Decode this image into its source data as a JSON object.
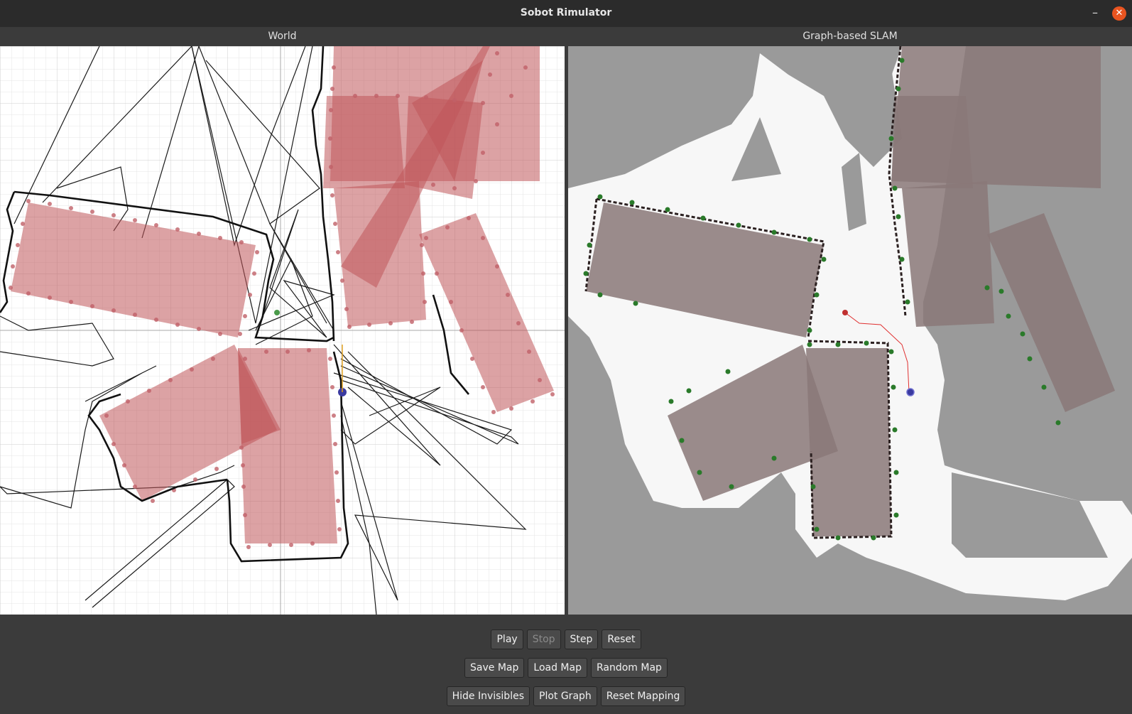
{
  "window": {
    "title": "Sobot Rimulator",
    "minimize_glyph": "–",
    "close_glyph": "✕"
  },
  "panes": {
    "world": {
      "title": "World"
    },
    "slam": {
      "title": "Graph-based SLAM"
    }
  },
  "controls": {
    "row1": [
      {
        "label": "Play",
        "enabled": true
      },
      {
        "label": "Stop",
        "enabled": false
      },
      {
        "label": "Step",
        "enabled": true
      },
      {
        "label": "Reset",
        "enabled": true
      }
    ],
    "row2": [
      {
        "label": "Save Map",
        "enabled": true
      },
      {
        "label": "Load Map",
        "enabled": true
      },
      {
        "label": "Random Map",
        "enabled": true
      }
    ],
    "row3": [
      {
        "label": "Hide Invisibles",
        "enabled": true
      },
      {
        "label": "Plot Graph",
        "enabled": true
      },
      {
        "label": "Reset Mapping",
        "enabled": true
      }
    ]
  },
  "colors": {
    "obstacle_fill": "#c0555a",
    "obstacle_dot": "#c06068",
    "slam_free": "#f7f7f7",
    "slam_unknown": "#9a9a9a",
    "slam_obstacle": "#8a7878",
    "landmark": "#2a7a2a",
    "robot": "#3a3aa0",
    "path": "#e03030"
  }
}
